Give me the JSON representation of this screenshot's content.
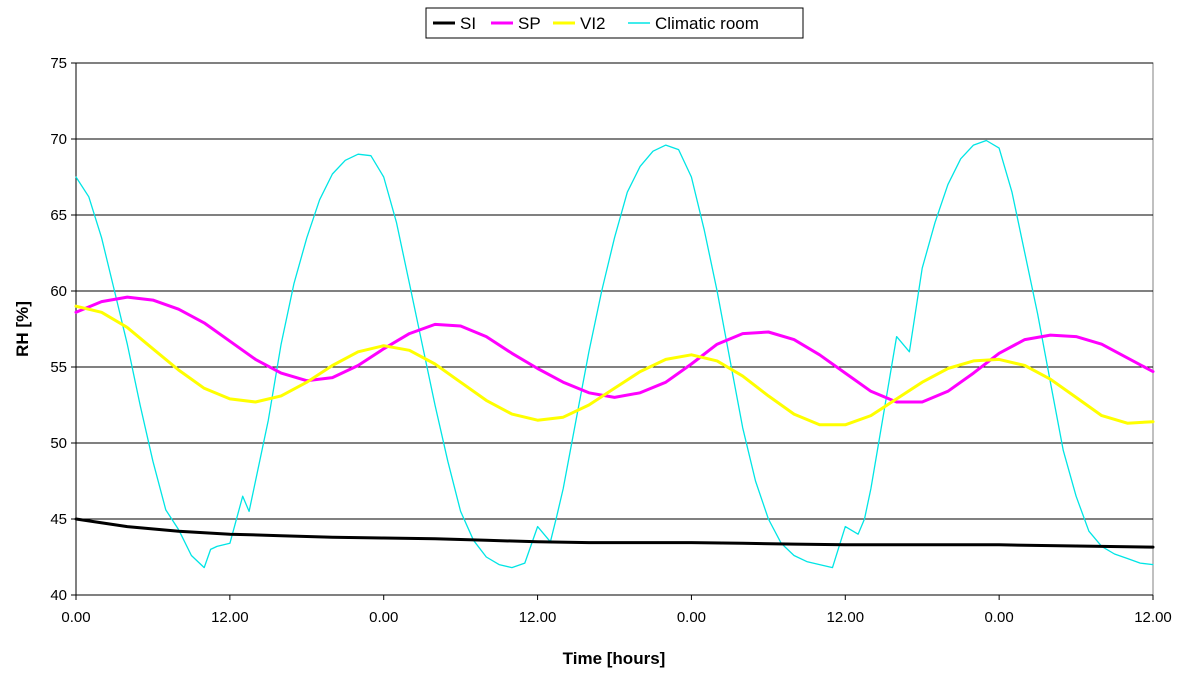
{
  "chart_data": {
    "type": "line",
    "title": "",
    "xlabel": "Time [hours]",
    "ylabel": "RH [%]",
    "x_ticks": [
      "0.00",
      "12.00",
      "0.00",
      "12.00",
      "0.00",
      "12.00",
      "0.00",
      "12.00"
    ],
    "xlim_hours": [
      0,
      84
    ],
    "ylim": [
      40,
      75
    ],
    "y_ticks": [
      40,
      45,
      50,
      55,
      60,
      65,
      70,
      75
    ],
    "grid": "horizontal",
    "legend_position": "top-center",
    "series": [
      {
        "name": "SI",
        "color": "#000000",
        "x": [
          0,
          4,
          8,
          12,
          16,
          20,
          24,
          28,
          32,
          36,
          40,
          44,
          48,
          52,
          56,
          60,
          64,
          68,
          72,
          76,
          80,
          84
        ],
        "values": [
          45.0,
          44.5,
          44.2,
          44.0,
          43.9,
          43.8,
          43.75,
          43.7,
          43.6,
          43.5,
          43.45,
          43.45,
          43.45,
          43.4,
          43.35,
          43.3,
          43.3,
          43.3,
          43.3,
          43.25,
          43.2,
          43.15
        ]
      },
      {
        "name": "SP",
        "color": "#ff00ff",
        "x": [
          0,
          2,
          4,
          6,
          8,
          10,
          12,
          14,
          16,
          18,
          20,
          22,
          24,
          26,
          28,
          30,
          32,
          34,
          36,
          38,
          40,
          42,
          44,
          46,
          48,
          50,
          52,
          54,
          56,
          58,
          60,
          62,
          64,
          66,
          68,
          70,
          72,
          74,
          76,
          78,
          80,
          82,
          84
        ],
        "values": [
          58.6,
          59.3,
          59.6,
          59.4,
          58.8,
          57.9,
          56.7,
          55.5,
          54.6,
          54.1,
          54.3,
          55.1,
          56.2,
          57.2,
          57.8,
          57.7,
          57.0,
          55.9,
          54.9,
          54.0,
          53.3,
          53.0,
          53.3,
          54.0,
          55.2,
          56.5,
          57.2,
          57.3,
          56.8,
          55.8,
          54.6,
          53.4,
          52.7,
          52.7,
          53.4,
          54.6,
          55.9,
          56.8,
          57.1,
          57.0,
          56.5,
          55.6,
          54.7
        ]
      },
      {
        "name": "VI2",
        "color": "#ffff00",
        "x": [
          0,
          2,
          4,
          6,
          8,
          10,
          12,
          14,
          16,
          18,
          20,
          22,
          24,
          26,
          28,
          30,
          32,
          34,
          36,
          38,
          40,
          42,
          44,
          46,
          48,
          50,
          52,
          54,
          56,
          58,
          60,
          62,
          64,
          66,
          68,
          70,
          72,
          74,
          76,
          78,
          80,
          82,
          84
        ],
        "values": [
          59.0,
          58.6,
          57.6,
          56.2,
          54.8,
          53.6,
          52.9,
          52.7,
          53.1,
          54.0,
          55.1,
          56.0,
          56.4,
          56.1,
          55.2,
          54.0,
          52.8,
          51.9,
          51.5,
          51.7,
          52.5,
          53.6,
          54.7,
          55.5,
          55.8,
          55.4,
          54.4,
          53.1,
          51.9,
          51.2,
          51.2,
          51.8,
          52.9,
          54.0,
          54.9,
          55.4,
          55.5,
          55.1,
          54.2,
          53.0,
          51.8,
          51.3,
          51.4
        ]
      },
      {
        "name": "Climatic room",
        "color": "#00e5e5",
        "x": [
          0,
          1,
          2,
          3,
          4,
          5,
          6,
          7,
          8,
          9,
          10,
          10.5,
          11,
          12,
          13,
          13.5,
          14,
          15,
          16,
          17,
          18,
          19,
          20,
          21,
          22,
          23,
          24,
          25,
          26,
          27,
          28,
          29,
          30,
          31,
          32,
          33,
          34,
          35,
          36,
          37,
          37.5,
          38,
          39,
          40,
          41,
          42,
          43,
          44,
          45,
          46,
          47,
          48,
          49,
          50,
          51,
          52,
          53,
          54,
          55,
          56,
          57,
          58,
          59,
          60,
          61,
          61.5,
          62,
          63,
          64,
          65,
          66,
          67,
          68,
          69,
          70,
          71,
          72,
          73,
          74,
          75,
          76,
          77,
          78,
          79,
          80,
          81,
          82,
          83,
          84
        ],
        "values": [
          67.5,
          66.2,
          63.5,
          60.0,
          56.5,
          52.5,
          48.8,
          45.6,
          44.3,
          42.6,
          41.8,
          43.0,
          43.2,
          43.4,
          46.5,
          45.5,
          47.5,
          51.5,
          56.5,
          60.5,
          63.5,
          66.0,
          67.7,
          68.6,
          69.0,
          68.9,
          67.5,
          64.5,
          60.5,
          56.5,
          52.5,
          48.8,
          45.5,
          43.6,
          42.5,
          42.0,
          41.8,
          42.1,
          44.5,
          43.5,
          45.2,
          47.0,
          51.5,
          56.0,
          60.0,
          63.5,
          66.5,
          68.2,
          69.2,
          69.6,
          69.3,
          67.5,
          64.0,
          60.0,
          55.5,
          51.0,
          47.5,
          45.0,
          43.4,
          42.6,
          42.2,
          42.0,
          41.8,
          44.5,
          44.0,
          45.0,
          47.0,
          52.0,
          57.0,
          56.0,
          61.5,
          64.5,
          67.0,
          68.7,
          69.6,
          69.9,
          69.4,
          66.5,
          62.5,
          58.5,
          54.0,
          49.5,
          46.5,
          44.2,
          43.2,
          42.7,
          42.4,
          42.1,
          42.0
        ]
      }
    ]
  }
}
